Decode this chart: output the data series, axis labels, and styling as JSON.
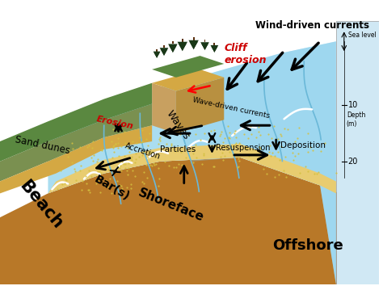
{
  "bg_color": "#ffffff",
  "colors": {
    "water_light": "#aaddf0",
    "water_mid": "#88ccee",
    "water_deep": "#66b8e0",
    "sand_yellow": "#d4a843",
    "sand_light": "#e8cc70",
    "soil_brown": "#b87828",
    "grass_green": "#5a8840",
    "grass_dark": "#3a6030",
    "cliff_tan": "#c89050",
    "tree_dark": "#1a3818",
    "particle": "#d4c040",
    "text_red": "#cc0000",
    "right_wall": "#d0e8f4",
    "wave_white": "#ffffff",
    "dune_olive": "#7a9050"
  },
  "labels": {
    "wind_driven": "Wind-driven currents",
    "cliff_erosion": "Cliff\nerosion",
    "erosion": "Erosion",
    "sand_dunes": "Sand dunes",
    "accretion": "Accretion",
    "wave_driven": "Wave-driven currents",
    "waves": "Waves",
    "beach": "Beach",
    "bars": "Bar(s)",
    "particles": "Particles",
    "resuspension": "Resuspension",
    "shoreface": "Shoreface",
    "deposition": "Deposition",
    "offshore": "Offshore",
    "sea_level": "Sea level",
    "depth_m": "Depth\n(m)",
    "depth_10": "10",
    "depth_20": "20"
  }
}
